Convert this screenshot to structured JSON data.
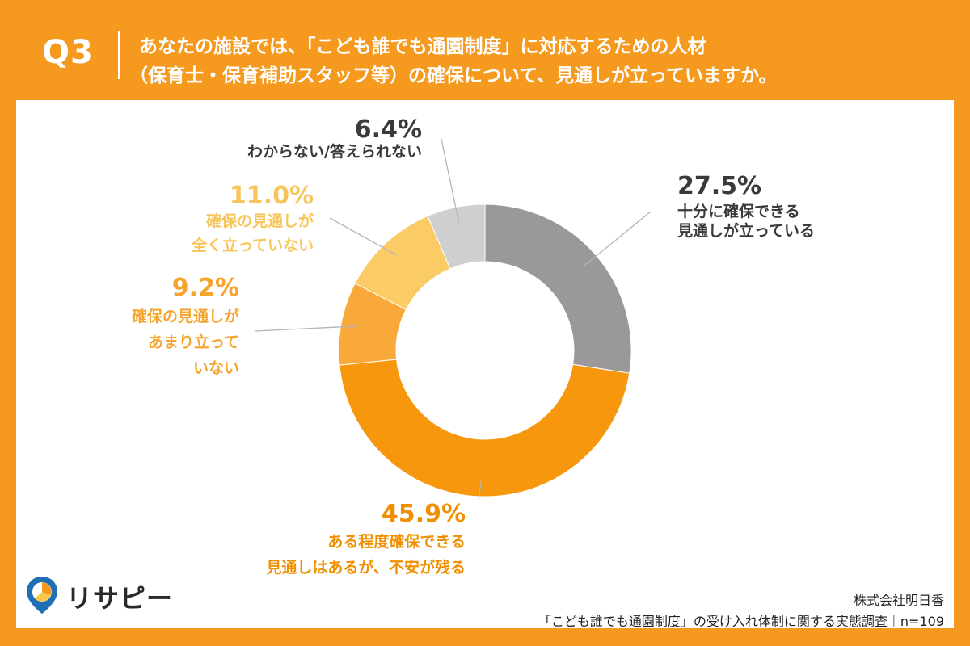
{
  "header": {
    "qnum": "Q3",
    "line1": "あなたの施設では、「こども誰でも通園制度」に対応するための人材",
    "line2": "（保育士・保育補助スタッフ等）の確保について、見通しが立っていますか。"
  },
  "chart_data": {
    "type": "pie",
    "donut": true,
    "start": "12 o'clock, clockwise",
    "slices": [
      {
        "value": 27.5,
        "pct_label": "27.5%",
        "lines": [
          "十分に確保できる",
          "見通しが立っている"
        ],
        "color": "#9a9898",
        "text_color": "#3a3a3a"
      },
      {
        "value": 45.9,
        "pct_label": "45.9%",
        "lines": [
          "ある程度確保できる",
          "見通しはあるが、不安が残る"
        ],
        "color": "#f7970e",
        "text_color": "#f08f00"
      },
      {
        "value": 9.2,
        "pct_label": "9.2%",
        "lines": [
          "確保の見通しが",
          "あまり立って",
          "いない"
        ],
        "color": "#f9a93a",
        "text_color": "#f5a52e"
      },
      {
        "value": 11.0,
        "pct_label": "11.0%",
        "lines": [
          "確保の見通しが",
          "全く立っていない"
        ],
        "color": "#fbcb66",
        "text_color": "#f8c55a"
      },
      {
        "value": 6.4,
        "pct_label": "6.4%",
        "lines": [
          "わからない/答えられない"
        ],
        "color": "#cfcfcf",
        "text_color": "#3a3a3a"
      }
    ]
  },
  "footer": {
    "logo_text": "リサピー",
    "company": "株式会社明日香",
    "survey": "「こども誰でも通園制度」の受け入れ体制に関する実態調査｜n=109"
  }
}
